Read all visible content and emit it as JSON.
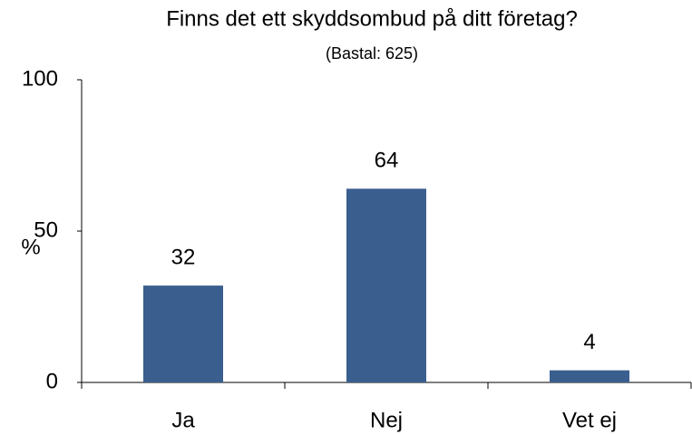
{
  "chart_data": {
    "type": "bar",
    "title": "Finns det ett skyddsombud på ditt företag?",
    "subtitle": "(Bastal: 625)",
    "y_label": "%",
    "categories": [
      "Ja",
      "Nej",
      "Vet ej"
    ],
    "values": [
      32,
      64,
      4
    ],
    "color": "#3a5f8f",
    "ylim": [
      0,
      100
    ],
    "yticks": [
      0,
      50,
      100
    ],
    "grid": false
  }
}
